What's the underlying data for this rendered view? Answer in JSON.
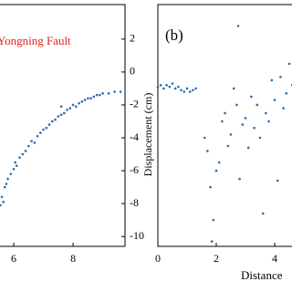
{
  "chart_data": [
    {
      "type": "scatter",
      "annotation": "Yongning Fault",
      "ylabel": "Displacement (cm)",
      "color": "#2b6cb0",
      "annotation_color": "#e0201b",
      "x": [
        5.55,
        5.6,
        5.65,
        5.7,
        5.75,
        5.8,
        5.9,
        6.0,
        6.05,
        6.1,
        6.2,
        6.3,
        6.4,
        6.5,
        6.6,
        6.7,
        6.8,
        6.9,
        7.0,
        7.1,
        7.2,
        7.3,
        7.4,
        7.5,
        7.6,
        7.7,
        7.8,
        7.9,
        8.0,
        8.1,
        8.2,
        8.3,
        8.4,
        8.5,
        8.6,
        8.7,
        8.8,
        8.9,
        9.0,
        9.2,
        9.4,
        9.6,
        7.6
      ],
      "values": [
        -8.1,
        -7.6,
        -7.9,
        -7.0,
        -6.8,
        -6.5,
        -6.2,
        -5.9,
        -5.5,
        -5.7,
        -5.2,
        -5.0,
        -4.8,
        -4.5,
        -4.2,
        -4.3,
        -3.9,
        -3.7,
        -3.5,
        -3.4,
        -3.2,
        -3.0,
        -2.9,
        -2.7,
        -2.6,
        -2.5,
        -2.3,
        -2.2,
        -2.0,
        -2.1,
        -1.9,
        -1.8,
        -1.7,
        -1.6,
        -1.6,
        -1.5,
        -1.4,
        -1.4,
        -1.3,
        -1.3,
        -1.2,
        -1.2,
        -2.1
      ],
      "xlim": [
        4,
        9.75
      ],
      "xticks": [
        6,
        8
      ],
      "ylim": [
        -10.6,
        4.1
      ],
      "yticks": [
        2,
        0,
        -2,
        -4,
        -6,
        -8,
        -10
      ]
    },
    {
      "type": "scatter",
      "label": "(b)",
      "xlabel": "Distance",
      "color": "#2b6cb0",
      "x": [
        0.0,
        0.1,
        0.2,
        0.3,
        0.4,
        0.5,
        0.6,
        0.7,
        0.8,
        0.9,
        1.0,
        1.1,
        1.2,
        1.3,
        1.6,
        1.7,
        1.8,
        1.85,
        1.9,
        2.0,
        2.1,
        2.2,
        2.3,
        2.4,
        2.5,
        2.6,
        2.7,
        2.75,
        2.8,
        2.9,
        3.0,
        3.1,
        3.2,
        3.3,
        3.4,
        3.5,
        3.6,
        3.7,
        3.8,
        3.9,
        4.0,
        4.1,
        4.2,
        4.3,
        4.4,
        4.5,
        4.6
      ],
      "values": [
        -0.9,
        -0.8,
        -1.0,
        -0.8,
        -0.9,
        -0.7,
        -1.0,
        -0.9,
        -1.1,
        -1.2,
        -1.0,
        -1.2,
        -1.1,
        -1.0,
        -4.0,
        -4.8,
        -7.0,
        -10.3,
        -9.0,
        -6.0,
        -5.5,
        -3.0,
        -2.5,
        -4.5,
        -3.8,
        -1.0,
        -2.0,
        2.8,
        -6.5,
        -3.2,
        -2.8,
        -4.6,
        -1.5,
        -3.4,
        -2.0,
        -4.0,
        -8.6,
        -2.5,
        -3.0,
        -0.5,
        -1.7,
        -6.6,
        -0.3,
        -2.2,
        -1.3,
        0.5,
        -0.8
      ],
      "xlim": [
        0,
        5
      ],
      "xticks": [
        0,
        2,
        4
      ],
      "ylim": [
        -10.6,
        4.1
      ]
    }
  ]
}
